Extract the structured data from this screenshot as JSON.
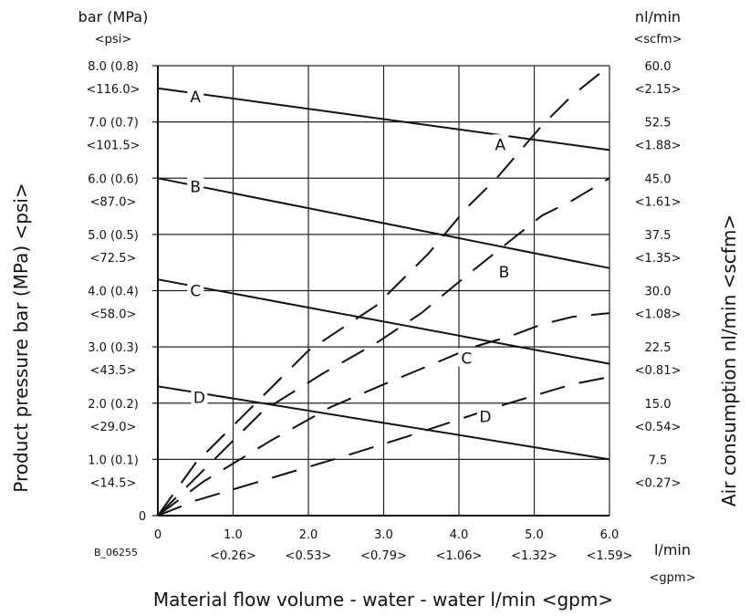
{
  "chart_data": {
    "type": "line",
    "figure_id": "B_06255",
    "xlabel": "Material flow volume - water - water l/min <gpm>",
    "ylabel_left": "Product pressure bar (MPa) <psi>",
    "ylabel_right": "Air consumption nl/min <scfm>",
    "left_units": {
      "primary": "bar (MPa)",
      "secondary": "<psi>"
    },
    "right_units": {
      "primary": "nl/min",
      "secondary": "<scfm>"
    },
    "x_units": {
      "primary": "l/min",
      "secondary": "<gpm>"
    },
    "xlim": [
      0,
      6
    ],
    "ylim_left": [
      0,
      8
    ],
    "ylim_right": [
      0,
      60
    ],
    "grid": true,
    "x_ticks": [
      {
        "value": 0,
        "label": "0",
        "sub": ""
      },
      {
        "value": 1,
        "label": "1.0",
        "sub": "<0.26>"
      },
      {
        "value": 2,
        "label": "2.0",
        "sub": "<0.53>"
      },
      {
        "value": 3,
        "label": "3.0",
        "sub": "<0.79>"
      },
      {
        "value": 4,
        "label": "4.0",
        "sub": "<1.06>"
      },
      {
        "value": 5,
        "label": "5.0",
        "sub": "<1.32>"
      },
      {
        "value": 6,
        "label": "6.0",
        "sub": "<1.59>"
      }
    ],
    "y_left_ticks": [
      {
        "value": 0,
        "label": "0",
        "sub": ""
      },
      {
        "value": 1,
        "label": "1.0 (0.1)",
        "sub": "<14.5>"
      },
      {
        "value": 2,
        "label": "2.0 (0.2)",
        "sub": "<29.0>"
      },
      {
        "value": 3,
        "label": "3.0 (0.3)",
        "sub": "<43.5>"
      },
      {
        "value": 4,
        "label": "4.0 (0.4)",
        "sub": "<58.0>"
      },
      {
        "value": 5,
        "label": "5.0 (0.5)",
        "sub": "<72.5>"
      },
      {
        "value": 6,
        "label": "6.0 (0.6)",
        "sub": "<87.0>"
      },
      {
        "value": 7,
        "label": "7.0 (0.7)",
        "sub": "<101.5>"
      },
      {
        "value": 8,
        "label": "8.0 (0.8)",
        "sub": "<116.0>"
      }
    ],
    "y_right_ticks": [
      {
        "value": 7.5,
        "label": "7.5",
        "sub": "<0.27>"
      },
      {
        "value": 15.0,
        "label": "15.0",
        "sub": "<0.54>"
      },
      {
        "value": 22.5,
        "label": "22.5",
        "sub": "<0.81>"
      },
      {
        "value": 30.0,
        "label": "30.0",
        "sub": "<1.08>"
      },
      {
        "value": 37.5,
        "label": "37.5",
        "sub": "<1.35>"
      },
      {
        "value": 45.0,
        "label": "45.0",
        "sub": "<1.61>"
      },
      {
        "value": 52.5,
        "label": "52.5",
        "sub": "<1.88>"
      },
      {
        "value": 60.0,
        "label": "60.0",
        "sub": "<2.15>"
      }
    ],
    "series": [
      {
        "name": "A",
        "style": "solid",
        "axis": "left",
        "x": [
          0,
          6
        ],
        "y": [
          7.6,
          6.5
        ],
        "label_at": [
          0.5,
          7.45
        ]
      },
      {
        "name": "B",
        "style": "solid",
        "axis": "left",
        "x": [
          0,
          6
        ],
        "y": [
          6.0,
          4.4
        ],
        "label_at": [
          0.5,
          5.85
        ]
      },
      {
        "name": "C",
        "style": "solid",
        "axis": "left",
        "x": [
          0,
          6
        ],
        "y": [
          4.2,
          2.7
        ],
        "label_at": [
          0.5,
          4.0
        ]
      },
      {
        "name": "D",
        "style": "solid",
        "axis": "left",
        "x": [
          0,
          6
        ],
        "y": [
          2.3,
          1.0
        ],
        "label_at": [
          0.55,
          2.1
        ]
      },
      {
        "name": "A",
        "style": "dashed",
        "axis": "right",
        "x": [
          0,
          0.5,
          1.3,
          2.0,
          2.9,
          3.6,
          4.1,
          4.5,
          5.1,
          5.5,
          6.0
        ],
        "y": [
          0,
          7.0,
          15.0,
          22.0,
          28.0,
          35.0,
          41.0,
          45.0,
          52.0,
          56.0,
          60.0
        ],
        "label_at": [
          4.55,
          49.5
        ]
      },
      {
        "name": "B",
        "style": "dashed",
        "axis": "right",
        "x": [
          0,
          0.6,
          1.4,
          2.2,
          2.9,
          3.5,
          4.1,
          4.6,
          5.1,
          5.5,
          6.0
        ],
        "y": [
          0,
          6.0,
          14.0,
          19.0,
          23.0,
          27.0,
          32.0,
          36.0,
          40.0,
          42.0,
          45.0
        ],
        "label_at": [
          4.6,
          32.5
        ]
      },
      {
        "name": "C",
        "style": "dashed",
        "axis": "right",
        "x": [
          0,
          0.6,
          1.5,
          2.3,
          3.0,
          3.6,
          4.2,
          4.7,
          5.1,
          5.5,
          6.0
        ],
        "y": [
          0,
          4.5,
          10.0,
          14.5,
          17.5,
          20.0,
          22.5,
          24.0,
          25.5,
          26.5,
          27.0
        ],
        "label_at": [
          4.1,
          21.0
        ]
      },
      {
        "name": "D",
        "style": "dashed",
        "axis": "right",
        "x": [
          0,
          0.5,
          1.5,
          2.5,
          3.3,
          3.9,
          4.5,
          5.0,
          5.5,
          6.0
        ],
        "y": [
          0,
          2.0,
          5.0,
          8.0,
          10.5,
          12.5,
          14.5,
          16.0,
          17.5,
          18.5
        ],
        "label_at": [
          4.35,
          13.2
        ]
      }
    ]
  }
}
